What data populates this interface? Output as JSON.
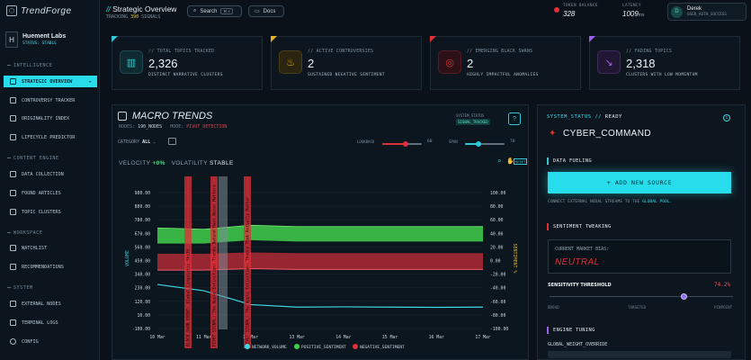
{
  "app": {
    "name": "TrendForge"
  },
  "org": {
    "initial": "H",
    "name": "Huement Labs",
    "status": "STATUS: STABLE"
  },
  "nav": {
    "sections": [
      {
        "label": "INTELLIGENCE"
      },
      {
        "label": "CONTENT ENGINE"
      },
      {
        "label": "WORKSPACE"
      },
      {
        "label": "SYSTEM"
      }
    ],
    "items": [
      {
        "label": "STRATEGIC OVERVIEW",
        "active": true,
        "icon": "shield-icon"
      },
      {
        "label": "CONTROVERSY TRACKER",
        "icon": "chart-icon"
      },
      {
        "label": "ORIGINALITY INDEX",
        "icon": "fingerprint-icon"
      },
      {
        "label": "LIFECYCLE PREDICTOR",
        "icon": "pulse-icon"
      },
      {
        "label": "DATA COLLECTION",
        "icon": "database-icon"
      },
      {
        "label": "FOUND ARTICLES",
        "icon": "newspaper-icon"
      },
      {
        "label": "TOPIC CLUSTERS",
        "icon": "grid-icon"
      },
      {
        "label": "WATCHLIST",
        "icon": "bookmark-icon"
      },
      {
        "label": "RECOMMENDATIONS",
        "icon": "star-icon"
      },
      {
        "label": "EXTERNAL NODES",
        "icon": "nodes-icon"
      },
      {
        "label": "TERMINAL LOGS",
        "icon": "terminal-icon"
      },
      {
        "label": "CONFIG",
        "icon": "gear-icon"
      }
    ]
  },
  "header": {
    "prefix": "//",
    "title": "Strategic Overview",
    "sub_prefix": "TRACKING",
    "sub_count": "390",
    "sub_suffix": "SIGNALS",
    "search_label": "Search",
    "search_kbd": "⌘ K",
    "docs_label": "Docs",
    "token_label": "TOKEN BALANCE",
    "token_value": "328",
    "latency_label": "LATENCY",
    "latency_value": "1009",
    "latency_unit": "ms",
    "user_initial": "D",
    "user_name": "Derek",
    "user_status": "USER_AUTH_SUCCESS"
  },
  "kpis": [
    {
      "label": "// TOTAL TOPICS TRACKED",
      "value": "2,326",
      "desc": "DISTINCT NARRATIVE CLUSTERS",
      "color": "#2fc9d8",
      "icon": "bar-chart-icon"
    },
    {
      "label": "// ACTIVE CONTROVERSIES",
      "value": "2",
      "desc": "SUSTAINED NEGATIVE SENTIMENT",
      "color": "#e6b422",
      "icon": "flame-icon"
    },
    {
      "label": "// EMERGING BLACK SWANS",
      "value": "2",
      "desc": "HIGHLY IMPACTFUL ANOMALIES",
      "color": "#e0303a",
      "icon": "anomaly-icon"
    },
    {
      "label": "// FADING TOPICS",
      "value": "2,318",
      "desc": "CLUSTERS WITH LOW MOMENTUM",
      "color": "#a35cf0",
      "icon": "trend-down-icon"
    }
  ],
  "macro": {
    "title": "MACRO TRENDS",
    "nodes_label": "NODES:",
    "nodes_value": "190_NODES",
    "mode_label": "MODE:",
    "mode_value": "PIVOT_DETECTION",
    "system_status_label": "SYSTEM_STATUS",
    "system_status_value": "SIGNAL_TRACKED",
    "help": "?",
    "category_label": "CATEGORY",
    "category_value": "ALL",
    "lookback_label": "LOOKBACK",
    "lookback_value": "60",
    "span_label": "SPAN",
    "span_value": "70",
    "lookback_fraction": 0.58,
    "span_fraction": 0.35,
    "velocity_label": "VELOCITY",
    "velocity_value": "+0%",
    "volatility_label": "VOLATILITY",
    "volatility_value": "STABLE",
    "reset_label": "RESET"
  },
  "chart_data": {
    "type": "area",
    "x": [
      "10 Mar",
      "11 Mar",
      "12 Mar",
      "13 Mar",
      "14 Mar",
      "15 Mar",
      "16 Mar",
      "17 Mar"
    ],
    "ylabel": "VOLUME",
    "y2label": "SENTIMENT %",
    "y_ticks": [
      "980.00",
      "880.00",
      "780.00",
      "670.00",
      "560.00",
      "450.00",
      "340.00",
      "230.00",
      "120.00",
      "10.00",
      "-100.00"
    ],
    "y2_ticks": [
      "100.00",
      "80.00",
      "60.00",
      "40.00",
      "20.00",
      "0.00",
      "-20.00",
      "-40.00",
      "-60.00",
      "-80.00",
      "-100.00"
    ],
    "ylim": [
      -100,
      980
    ],
    "y2lim": [
      -100,
      100
    ],
    "series": [
      {
        "name": "NETWORK_VOLUME",
        "color": "#3fd6e6",
        "values": [
          250,
          200,
          90,
          70,
          72,
          70,
          68,
          70
        ]
      },
      {
        "name": "POSITIVE_SENTIMENT",
        "color": "#3fd04a",
        "band_values": [
          [
            48,
            25
          ],
          [
            46,
            25
          ],
          [
            52,
            30
          ],
          [
            50,
            28
          ],
          [
            50,
            28
          ],
          [
            50,
            28
          ],
          [
            50,
            28
          ],
          [
            50,
            28
          ]
        ]
      },
      {
        "name": "NEGATIVE_SENTIMENT",
        "color": "#e0303a",
        "band_values": [
          [
            10,
            -14
          ],
          [
            10,
            -14
          ],
          [
            12,
            -12
          ],
          [
            11,
            -13
          ],
          [
            11,
            -13
          ],
          [
            11,
            -13
          ],
          [
            11,
            -13
          ],
          [
            11,
            -13
          ]
        ]
      }
    ],
    "annotations": [
      "BLACK SWAN EVENT: Global Linguistic Shift",
      "PIVOT SIGNAL: The Apple Extinction: Trends Behind Hack Never Matters",
      "PIVOT SIGNAL: The Apple Extinction: Theory That Actually Matter"
    ],
    "legend_placement": "bottom"
  },
  "right_panel": {
    "status_label": "SYSTEM_STATUS //",
    "status_value": "READY",
    "title": "CYBER_COMMAND",
    "data_fueling": "DATA FUELING",
    "add_source": "+ ADD NEW SOURCE",
    "connect_text": "CONNECT EXTERNAL NODAL STREAMS TO THE",
    "connect_highlight": "GLOBAL POOL.",
    "sentiment_tweaking": "SENTIMENT TWEAKING",
    "bias_label": "CURRENT MARKET BIAS:",
    "bias_value": "NEUTRAL",
    "sensitivity_label": "SENSITIVITY THRESHOLD",
    "sensitivity_value": "74.2%",
    "sensitivity_fraction": 0.742,
    "ticks": [
      "BROAD",
      "TARGETED",
      "PINPOINT"
    ],
    "engine_tuning": "ENGINE TUNING",
    "global_weight": "GLOBAL_WEIGHT_OVERRIDE"
  }
}
